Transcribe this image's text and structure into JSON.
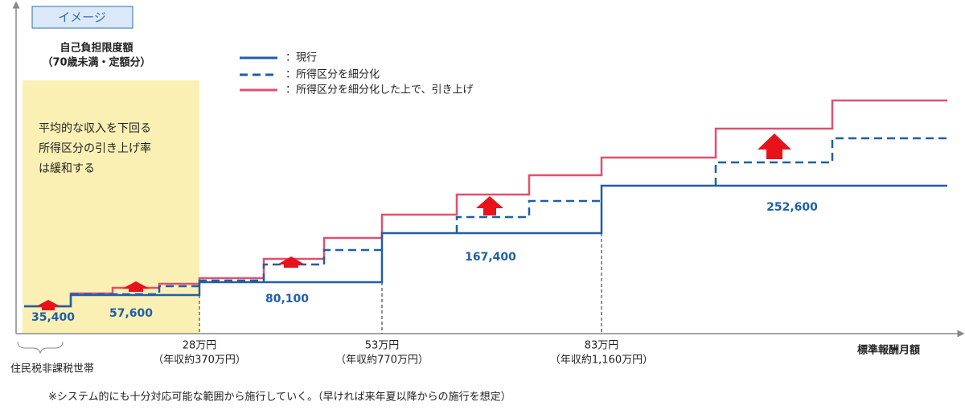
{
  "badge": "イメージ",
  "y_axis_label": [
    "自己負担限度額",
    "（70歳未満・定額分）"
  ],
  "legend": [
    "：現行",
    "：所得区分を細分化",
    "：所得区分を細分化した上で、引き上げ"
  ],
  "note": [
    "平均的な収入を下回る",
    "所得区分の引き上げ率",
    "は緩和する"
  ],
  "value_labels": [
    "35,400",
    "57,600",
    "80,100",
    "167,400",
    "252,600"
  ],
  "x_labels": [
    {
      "amount": "28万円",
      "income": "（年収約370万円）"
    },
    {
      "amount": "53万円",
      "income": "（年収約770万円）"
    },
    {
      "amount": "83万円",
      "income": "（年収約1,160万円）"
    }
  ],
  "x_axis_title": "標準報酬月額",
  "brace_label": "住民税非課税世帯",
  "footnote": "※システム的にも十分対応可能な範囲から施行していく。（早ければ来年夏以降からの施行を想定）"
}
